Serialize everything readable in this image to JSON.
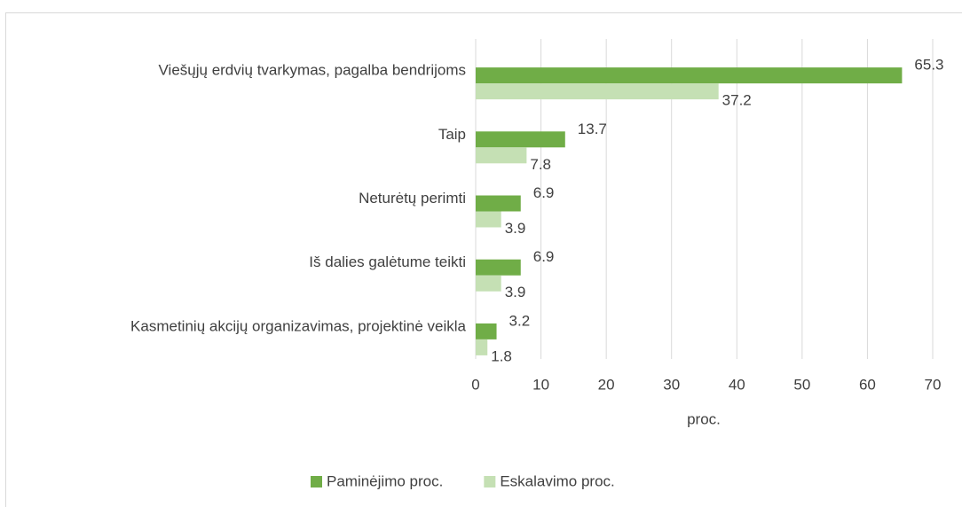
{
  "chart_data": {
    "type": "bar",
    "orientation": "horizontal",
    "categories": [
      "Viešųjų erdvių tvarkymas, pagalba bendrijoms",
      "Taip",
      "Neturėtų perimti",
      "Iš dalies galėtume teikti",
      "Kasmetinių akcijų organizavimas, projektinė veikla"
    ],
    "series": [
      {
        "name": "Paminėjimo proc.",
        "color": "#70ad47",
        "values": [
          65.3,
          13.7,
          6.9,
          6.9,
          3.2
        ]
      },
      {
        "name": "Eskalavimo proc.",
        "color": "#c5e0b4",
        "values": [
          37.2,
          7.8,
          3.9,
          3.9,
          1.8
        ]
      }
    ],
    "x_label": "proc.",
    "xlim": [
      0,
      70
    ],
    "xticks": [
      0,
      10,
      20,
      30,
      40,
      50,
      60,
      70
    ],
    "grid": true,
    "legend": "bottom"
  }
}
